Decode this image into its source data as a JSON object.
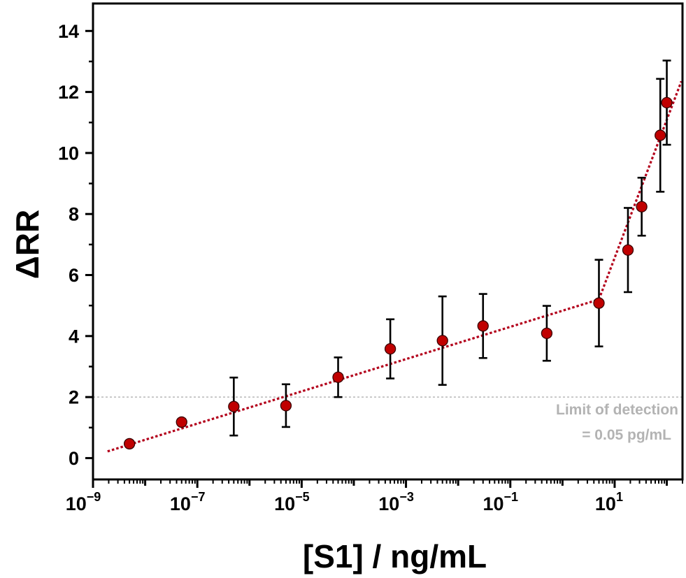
{
  "chart_data": {
    "type": "scatter",
    "title": "",
    "xlabel": "[S1] / ng/mL",
    "ylabel": "ΔRR",
    "xscale": "log",
    "xlim": [
      1e-09,
      200
    ],
    "ylim": [
      -0.7,
      14.9
    ],
    "x_ticks": [
      {
        "value": 1e-09,
        "base": "10",
        "exp": "−9"
      },
      {
        "value": 1e-07,
        "base": "10",
        "exp": "−7"
      },
      {
        "value": 1e-05,
        "base": "10",
        "exp": "−5"
      },
      {
        "value": 0.001,
        "base": "10",
        "exp": "−3"
      },
      {
        "value": 0.1,
        "base": "10",
        "exp": "−1"
      },
      {
        "value": 10,
        "base": "10",
        "exp": "1"
      }
    ],
    "y_ticks": [
      0,
      2,
      4,
      6,
      8,
      10,
      12,
      14
    ],
    "points": [
      {
        "x": 5e-09,
        "y": 0.47,
        "err": 0.1
      },
      {
        "x": 5e-08,
        "y": 1.18,
        "err": 0.1
      },
      {
        "x": 5e-07,
        "y": 1.69,
        "err": 0.95
      },
      {
        "x": 5e-06,
        "y": 1.72,
        "err": 0.7
      },
      {
        "x": 5e-05,
        "y": 2.65,
        "err": 0.65
      },
      {
        "x": 0.0005,
        "y": 3.58,
        "err": 0.97
      },
      {
        "x": 0.005,
        "y": 3.85,
        "err": 1.45
      },
      {
        "x": 0.03,
        "y": 4.33,
        "err": 1.05
      },
      {
        "x": 0.5,
        "y": 4.09,
        "err": 0.9
      },
      {
        "x": 5,
        "y": 5.08,
        "err": 1.42
      },
      {
        "x": 18,
        "y": 6.82,
        "err": 1.38
      },
      {
        "x": 33,
        "y": 8.24,
        "err": 0.95
      },
      {
        "x": 75,
        "y": 10.58,
        "err": 1.85
      },
      {
        "x": 100,
        "y": 11.65,
        "err": 1.38
      }
    ],
    "fits": [
      {
        "from": [
          1.9e-09,
          0.22
        ],
        "to": [
          5,
          5.2
        ]
      },
      {
        "from": [
          5,
          5.2
        ],
        "to": [
          190,
          12.35
        ]
      }
    ],
    "threshold": {
      "y": 2.0
    },
    "annotation": {
      "line1": "Limit of detection",
      "line2": "= 0.05 pg/mL"
    },
    "colors": {
      "marker_fill": "#c00000",
      "marker_edge": "#3a0000",
      "fit_line": "#b3001b",
      "threshold_line": "#b8b8b8",
      "annotation": "#b3b3b3"
    },
    "grid": false,
    "legend": "none"
  }
}
